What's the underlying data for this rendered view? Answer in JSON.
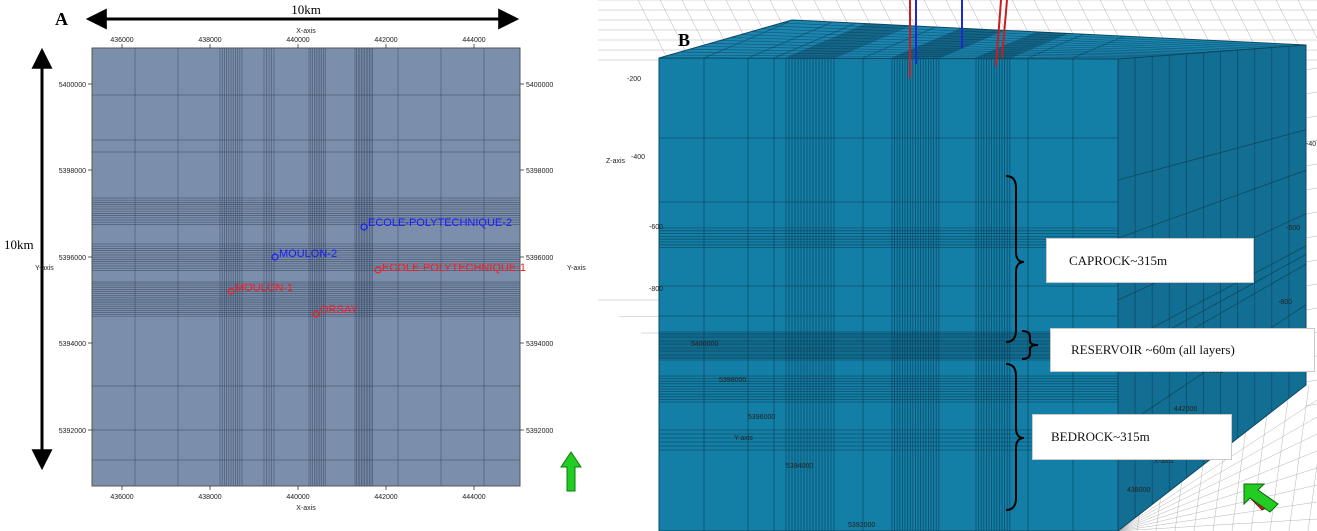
{
  "panel_a": {
    "letter": "A",
    "scale_top": "10km",
    "scale_left": "10km",
    "x_axis_title": "X-axis",
    "y_axis_title": "Y-axis",
    "x_ticks": [
      "436000",
      "438000",
      "440000",
      "442000",
      "444000"
    ],
    "y_ticks": [
      "5400000",
      "5398000",
      "5396000",
      "5394000",
      "5392000"
    ],
    "wells": [
      {
        "name": "ECOLE-POLYTECHNIQUE-2",
        "color": "#1a1aff"
      },
      {
        "name": "MOULON-2",
        "color": "#1a1aff"
      },
      {
        "name": "ECOLE-POLYTECHNIQUE-1",
        "color": "#ff1a1a"
      },
      {
        "name": "MOULON-1",
        "color": "#ff1a1a"
      },
      {
        "name": "ORSAY",
        "color": "#ff1a1a"
      }
    ],
    "colors": {
      "grid_fill": "#7b8fad",
      "north_arrow": "#22cc22"
    }
  },
  "panel_b": {
    "letter": "B",
    "z_axis_title": "Z-axis",
    "y_axis_title": "Y-axis",
    "x_axis_title": "X-axis",
    "z_ticks_left": [
      "-200",
      "-400",
      "-600",
      "-800"
    ],
    "z_ticks_right": [
      "-40",
      "-600",
      "-800"
    ],
    "y_ticks": [
      "5400000",
      "5398000",
      "5396000",
      "5394000",
      "5392000"
    ],
    "x_ticks": [
      "444000",
      "442000",
      "440000",
      "438000"
    ],
    "callouts": {
      "caprock": "CAPROCK~315m",
      "reservoir": "RESERVOIR  ~60m (all layers)",
      "bedrock": "BEDROCK~315m"
    },
    "colors": {
      "top": "#1c86b0",
      "front": "#147fa6",
      "right": "#126f93"
    }
  }
}
